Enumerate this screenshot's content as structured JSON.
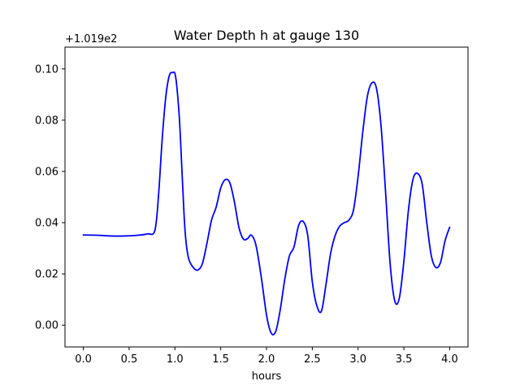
{
  "chart_data": {
    "type": "line",
    "title": "Water Depth h at gauge 130",
    "xlabel": "hours",
    "ylabel": "",
    "offset_text": "+1.019e2",
    "xlim": [
      -0.2,
      4.2
    ],
    "ylim": [
      -0.0085,
      0.1085
    ],
    "xticks": [
      0.0,
      0.5,
      1.0,
      1.5,
      2.0,
      2.5,
      3.0,
      3.5,
      4.0
    ],
    "xtick_labels": [
      "0.0",
      "0.5",
      "1.0",
      "1.5",
      "2.0",
      "2.5",
      "3.0",
      "3.5",
      "4.0"
    ],
    "yticks": [
      0.0,
      0.02,
      0.04,
      0.06,
      0.08,
      0.1
    ],
    "ytick_labels": [
      "0.00",
      "0.02",
      "0.04",
      "0.06",
      "0.08",
      "0.10"
    ],
    "grid": false,
    "series": [
      {
        "color": "#0000ff",
        "x": [
          0.0,
          0.15,
          0.3,
          0.45,
          0.6,
          0.7,
          0.78,
          0.82,
          0.86,
          0.9,
          0.94,
          0.98,
          1.0,
          1.02,
          1.05,
          1.08,
          1.1,
          1.12,
          1.15,
          1.2,
          1.25,
          1.3,
          1.35,
          1.4,
          1.45,
          1.5,
          1.55,
          1.6,
          1.65,
          1.7,
          1.75,
          1.8,
          1.83,
          1.87,
          1.9,
          1.95,
          2.0,
          2.05,
          2.1,
          2.15,
          2.2,
          2.25,
          2.3,
          2.35,
          2.4,
          2.45,
          2.5,
          2.55,
          2.6,
          2.65,
          2.7,
          2.75,
          2.8,
          2.85,
          2.9,
          2.95,
          3.0,
          3.05,
          3.1,
          3.15,
          3.2,
          3.25,
          3.3,
          3.35,
          3.4,
          3.45,
          3.5,
          3.55,
          3.6,
          3.65,
          3.7,
          3.75,
          3.8,
          3.85,
          3.9,
          3.95,
          4.0
        ],
        "y": [
          0.0352,
          0.0351,
          0.0348,
          0.0348,
          0.0351,
          0.0356,
          0.0368,
          0.05,
          0.072,
          0.089,
          0.0975,
          0.0986,
          0.0982,
          0.0935,
          0.08,
          0.058,
          0.043,
          0.033,
          0.026,
          0.0225,
          0.0215,
          0.024,
          0.032,
          0.041,
          0.046,
          0.0535,
          0.0568,
          0.0555,
          0.048,
          0.038,
          0.0335,
          0.034,
          0.0352,
          0.033,
          0.0285,
          0.017,
          0.004,
          -0.003,
          -0.0025,
          0.006,
          0.018,
          0.027,
          0.0305,
          0.0388,
          0.0405,
          0.035,
          0.017,
          0.0075,
          0.0055,
          0.016,
          0.028,
          0.035,
          0.0387,
          0.04,
          0.041,
          0.045,
          0.058,
          0.075,
          0.089,
          0.0945,
          0.0925,
          0.078,
          0.052,
          0.024,
          0.0095,
          0.0105,
          0.025,
          0.045,
          0.057,
          0.0592,
          0.055,
          0.04,
          0.027,
          0.0225,
          0.0245,
          0.033,
          0.0382
        ]
      }
    ]
  }
}
